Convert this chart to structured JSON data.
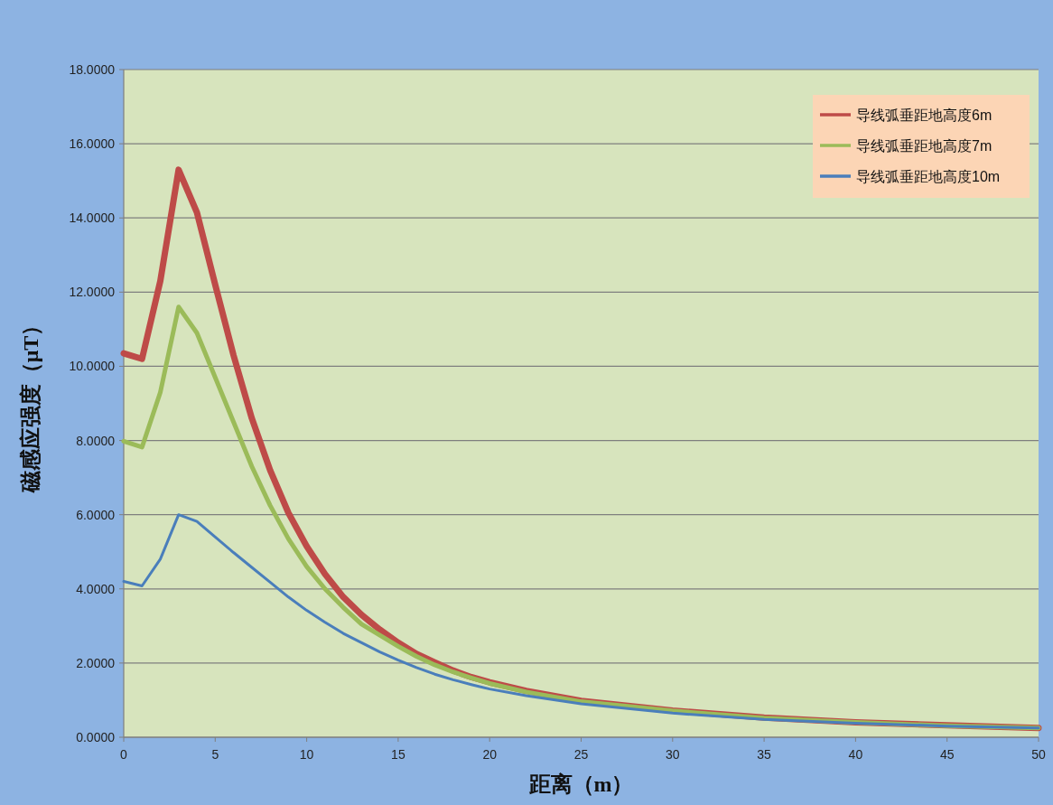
{
  "chart_data": {
    "type": "line",
    "xlabel": "距离（m）",
    "ylabel": "磁感应强度（μT）",
    "xlim": [
      0,
      50
    ],
    "xticks": [
      0,
      5,
      10,
      15,
      20,
      25,
      30,
      35,
      40,
      45,
      50
    ],
    "ylim": [
      0,
      18
    ],
    "yticks": [
      {
        "value": 0,
        "label": "0.0000"
      },
      {
        "value": 2,
        "label": "2.0000"
      },
      {
        "value": 4,
        "label": "4.0000"
      },
      {
        "value": 6,
        "label": "6.0000"
      },
      {
        "value": 8,
        "label": "8.0000"
      },
      {
        "value": 10,
        "label": "10.0000"
      },
      {
        "value": 12,
        "label": "12.0000"
      },
      {
        "value": 14,
        "label": "14.0000"
      },
      {
        "value": 16,
        "label": "16.0000"
      },
      {
        "value": 18,
        "label": "18.0000"
      }
    ],
    "grid": "y",
    "legend": "top right",
    "marker": "none",
    "line_style": "solid",
    "series": [
      {
        "name": "导线弧垂距地高度6m",
        "color": "#be4b48",
        "x": [
          0,
          1,
          2,
          3,
          4,
          5,
          6,
          7,
          8,
          9,
          10,
          11,
          12,
          13,
          14,
          15,
          16,
          17,
          18,
          19,
          20,
          22,
          25,
          30,
          35,
          40,
          45,
          50
        ],
        "values": [
          10.35,
          10.2,
          12.3,
          15.3,
          14.15,
          12.2,
          10.3,
          8.6,
          7.2,
          6.05,
          5.15,
          4.4,
          3.78,
          3.3,
          2.9,
          2.55,
          2.25,
          2.02,
          1.8,
          1.62,
          1.48,
          1.25,
          0.98,
          0.72,
          0.53,
          0.4,
          0.32,
          0.25
        ]
      },
      {
        "name": "导线弧垂距地高度7m",
        "color": "#9bbb59",
        "x": [
          0,
          1,
          2,
          3,
          4,
          5,
          6,
          7,
          8,
          9,
          10,
          11,
          12,
          13,
          14,
          15,
          16,
          17,
          18,
          19,
          20,
          22,
          25,
          30,
          35,
          40,
          45,
          50
        ],
        "values": [
          7.98,
          7.82,
          9.3,
          11.6,
          10.9,
          9.7,
          8.5,
          7.3,
          6.25,
          5.35,
          4.6,
          4.0,
          3.5,
          3.05,
          2.75,
          2.45,
          2.18,
          1.95,
          1.76,
          1.6,
          1.45,
          1.22,
          0.96,
          0.71,
          0.52,
          0.4,
          0.31,
          0.25
        ]
      },
      {
        "name": "导线弧垂距地高度10m",
        "color": "#4a7ebb",
        "x": [
          0,
          1,
          2,
          3,
          4,
          5,
          6,
          7,
          8,
          9,
          10,
          11,
          12,
          13,
          14,
          15,
          16,
          17,
          18,
          19,
          20,
          22,
          25,
          30,
          35,
          40,
          45,
          50
        ],
        "values": [
          4.2,
          4.08,
          4.8,
          6.0,
          5.82,
          5.4,
          4.98,
          4.58,
          4.18,
          3.78,
          3.42,
          3.1,
          2.8,
          2.55,
          2.3,
          2.08,
          1.88,
          1.7,
          1.55,
          1.42,
          1.3,
          1.12,
          0.9,
          0.65,
          0.48,
          0.38,
          0.3,
          0.25
        ]
      }
    ]
  }
}
